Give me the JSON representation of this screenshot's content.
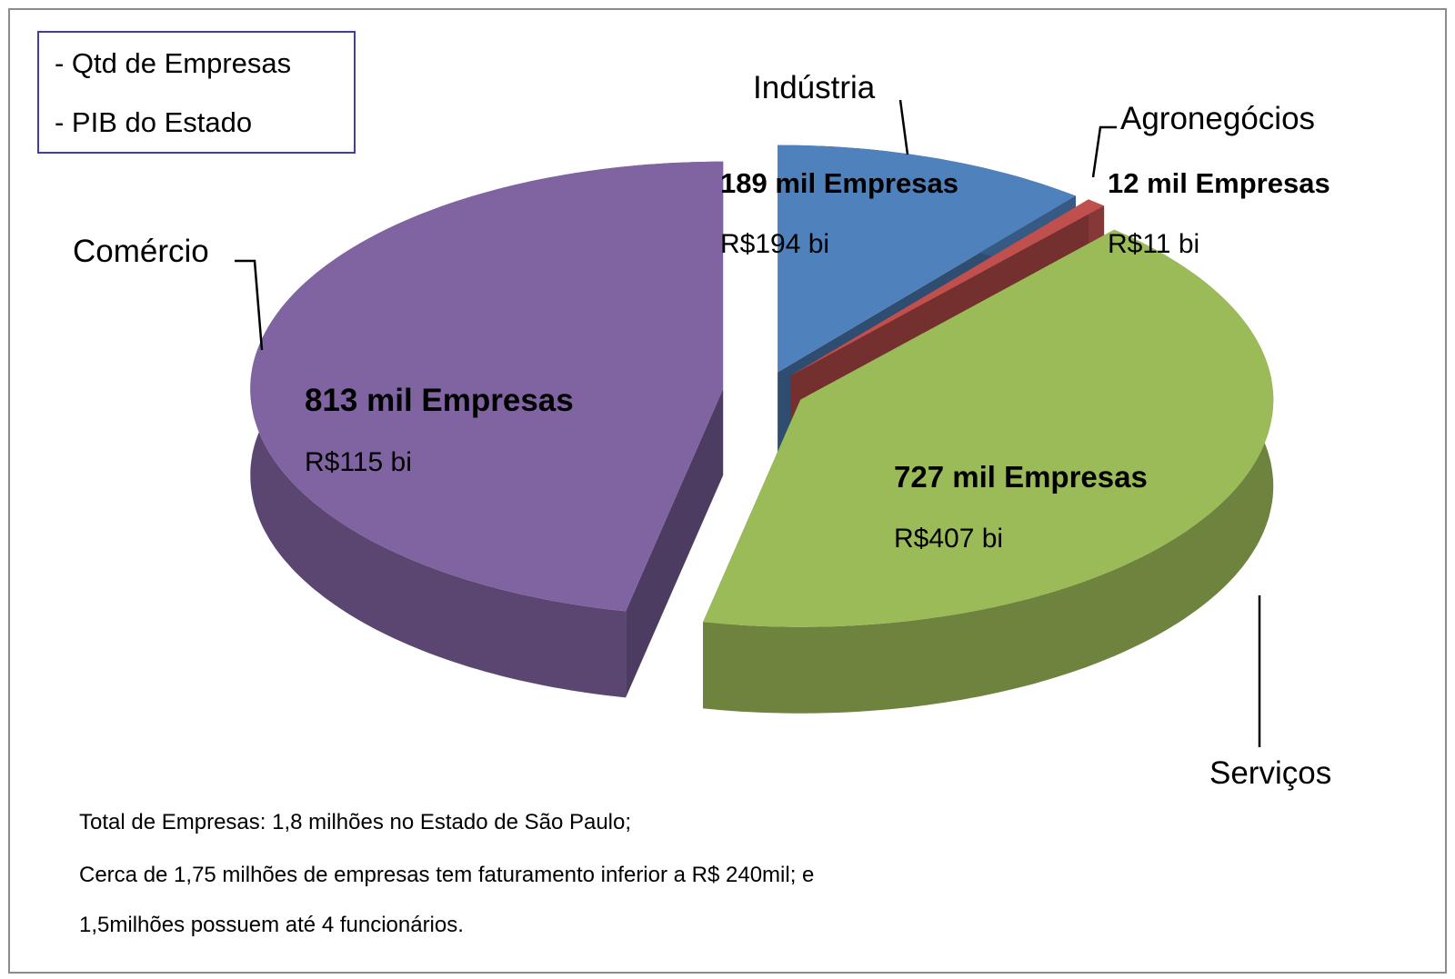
{
  "chart_data": {
    "type": "pie",
    "legend": [
      "- Qtd de Empresas",
      "- PIB do Estado"
    ],
    "categories": [
      "Indústria",
      "Agronegócios",
      "Serviços",
      "Comércio"
    ],
    "values": [
      189,
      12,
      727,
      813
    ],
    "value_labels": [
      "189 mil Empresas",
      "12 mil Empresas",
      "727 mil Empresas",
      "813 mil Empresas"
    ],
    "pib_values": [
      194,
      11,
      407,
      115
    ],
    "pib_labels": [
      "R$194 bi",
      "R$11 bi",
      "R$407 bi",
      "R$115 bi"
    ],
    "colors": [
      "#4f81bd",
      "#c0504d",
      "#9bbb59",
      "#8064a2"
    ],
    "notes": [
      "Total de Empresas: 1,8 milhões no Estado de São Paulo;",
      "Cerca de 1,75 milhões de empresas tem faturamento inferior a R$ 240mil; e",
      "1,5milhões possuem até 4 funcionários."
    ]
  }
}
